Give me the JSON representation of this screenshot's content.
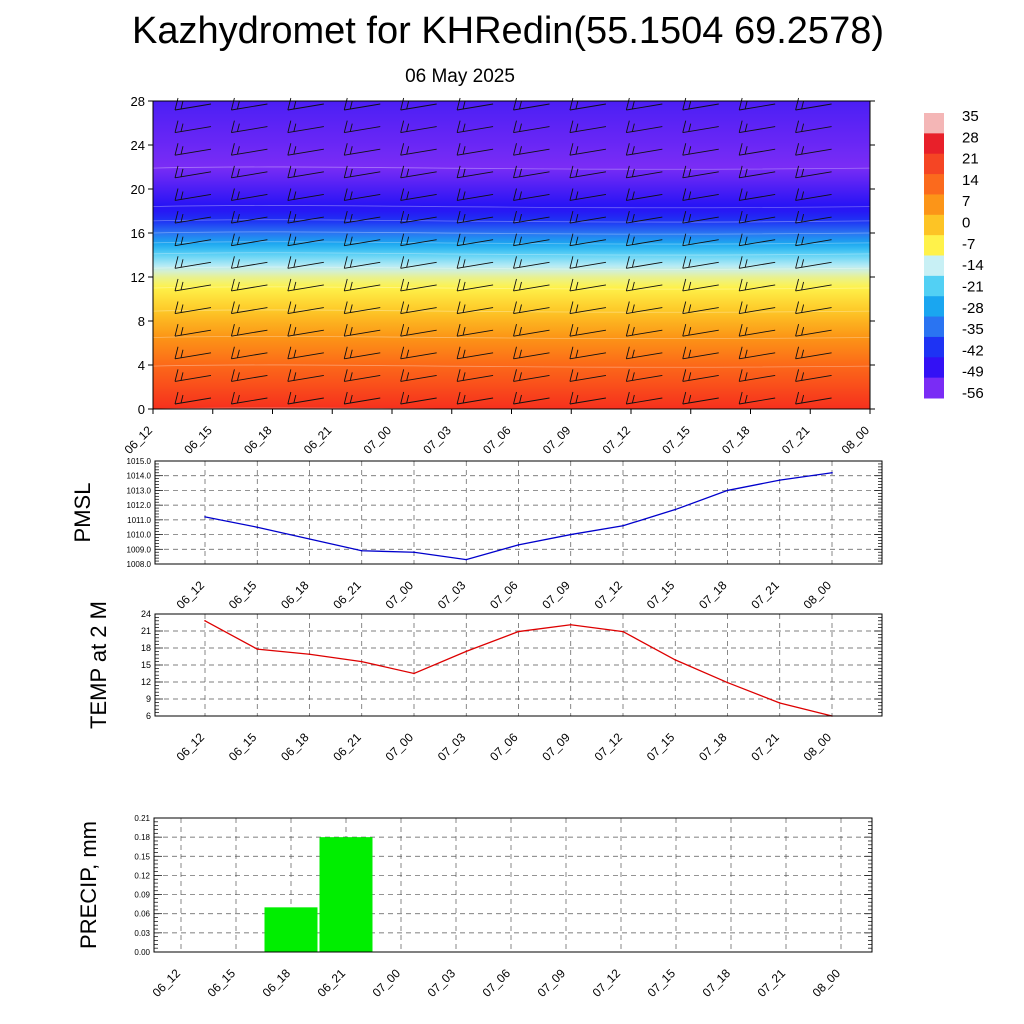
{
  "title": "Kazhydromet for KHRedin(55.1504 69.2578)",
  "subtitle": "06 May 2025",
  "colorbar": {
    "labels": [
      "35",
      "28",
      "21",
      "14",
      "7",
      "0",
      "-7",
      "-14",
      "-21",
      "-28",
      "-35",
      "-42",
      "-49",
      "-56"
    ],
    "colors": [
      "#f4b6b6",
      "#e8202a",
      "#f54524",
      "#fb6a1d",
      "#fc9518",
      "#fdc425",
      "#fff24a",
      "#c8f0f5",
      "#52d0f4",
      "#1aa6f0",
      "#2a74f2",
      "#1e33f4",
      "#3311f5",
      "#7a2cf5"
    ]
  },
  "chart_data": [
    {
      "type": "heatmap",
      "name": "temperature-wind-cross-section",
      "x": [
        "06_12",
        "06_15",
        "06_18",
        "06_21",
        "07_00",
        "07_03",
        "07_06",
        "07_09",
        "07_12",
        "07_15",
        "07_18",
        "07_21",
        "08_00"
      ],
      "y_ticks": [
        "0",
        "4",
        "8",
        "12",
        "16",
        "20",
        "24",
        "28"
      ],
      "ylim": [
        0,
        28
      ],
      "vertical_profile": [
        {
          "y": 0,
          "value": 21
        },
        {
          "y": 4,
          "value": 14
        },
        {
          "y": 8,
          "value": 3
        },
        {
          "y": 12,
          "value": -10
        },
        {
          "y": 14,
          "value": -20
        },
        {
          "y": 16,
          "value": -35
        },
        {
          "y": 18,
          "value": -48
        },
        {
          "y": 22,
          "value": -56
        },
        {
          "y": 28,
          "value": -52
        }
      ]
    },
    {
      "type": "line",
      "ylabel": "PMSL",
      "x": [
        "06_12",
        "06_15",
        "06_18",
        "06_21",
        "07_00",
        "07_03",
        "07_06",
        "07_09",
        "07_12",
        "07_15",
        "07_18",
        "07_21",
        "08_00"
      ],
      "values": [
        1011.2,
        1010.5,
        1009.7,
        1008.9,
        1008.8,
        1008.3,
        1009.3,
        1010.0,
        1010.6,
        1011.7,
        1013.0,
        1013.7,
        1014.2
      ],
      "ylim": [
        1008.0,
        1015.0
      ],
      "y_ticks": [
        "1008.0",
        "1009.0",
        "1010.0",
        "1011.0",
        "1012.0",
        "1013.0",
        "1014.0",
        "1015.0"
      ],
      "color": "#0000cc"
    },
    {
      "type": "line",
      "ylabel": "TEMP at 2 M",
      "x": [
        "06_12",
        "06_15",
        "06_18",
        "06_21",
        "07_00",
        "07_03",
        "07_06",
        "07_09",
        "07_12",
        "07_15",
        "07_18",
        "07_21",
        "08_00"
      ],
      "values": [
        22.8,
        17.8,
        16.9,
        15.6,
        13.5,
        17.4,
        20.9,
        22.1,
        20.9,
        15.9,
        11.9,
        8.3,
        6.0
      ],
      "ylim": [
        6,
        24
      ],
      "y_ticks": [
        "6",
        "9",
        "12",
        "15",
        "18",
        "21",
        "24"
      ],
      "color": "#dd0000"
    },
    {
      "type": "bar",
      "ylabel": "PRECIP, mm",
      "x": [
        "06_12",
        "06_15",
        "06_18",
        "06_21",
        "07_00",
        "07_03",
        "07_06",
        "07_09",
        "07_12",
        "07_15",
        "07_18",
        "07_21",
        "08_00"
      ],
      "values": [
        0,
        0,
        0.07,
        0.18,
        0,
        0,
        0,
        0,
        0,
        0,
        0,
        0,
        0
      ],
      "ylim": [
        0,
        0.21
      ],
      "y_ticks": [
        "0.00",
        "0.03",
        "0.06",
        "0.09",
        "0.12",
        "0.15",
        "0.18",
        "0.21"
      ],
      "color": "#00ee00"
    }
  ]
}
